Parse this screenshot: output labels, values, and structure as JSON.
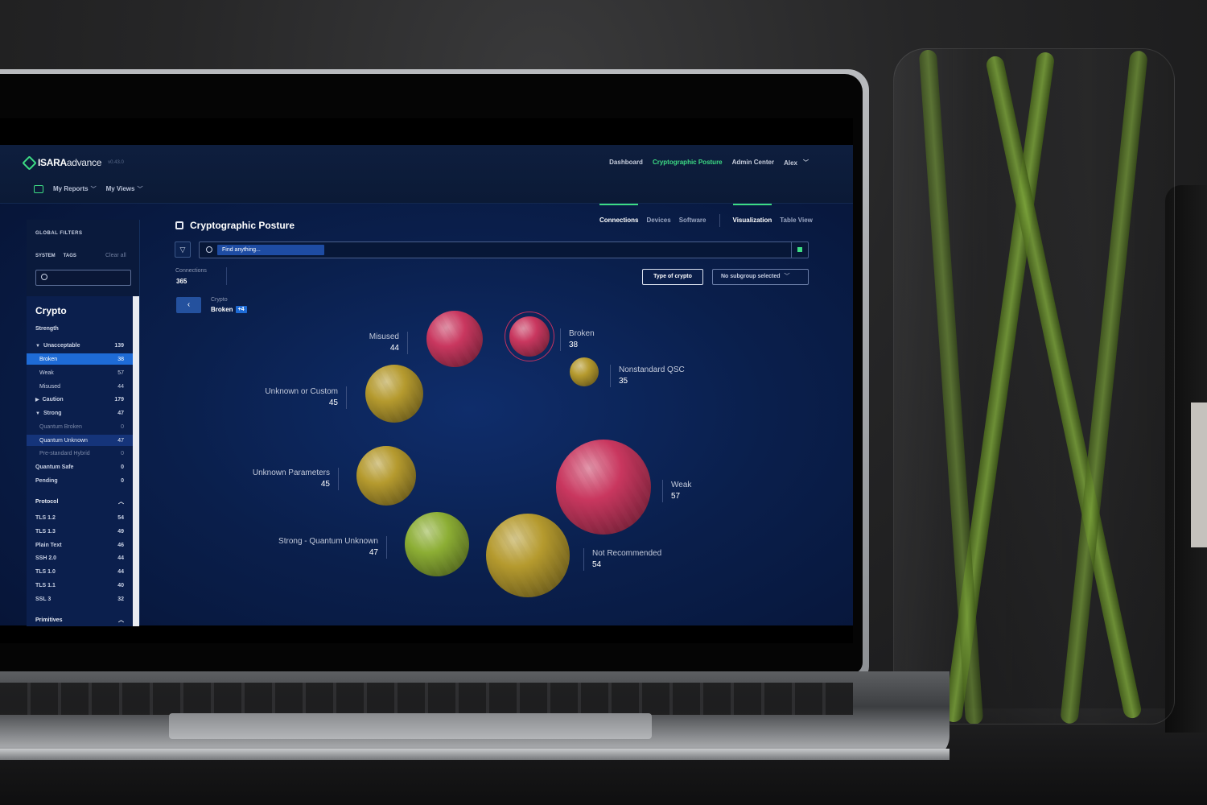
{
  "brand": {
    "name_bold": "ISARA",
    "name_light": "advance",
    "version": "v0.43.0"
  },
  "topnav": {
    "dashboard": "Dashboard",
    "crypto_posture": "Cryptographic Posture",
    "admin": "Admin Center",
    "user": "Alex"
  },
  "subnav": {
    "reports": "My Reports",
    "views": "My Views"
  },
  "sidebar": {
    "heading": "GLOBAL FILTERS",
    "tab_system": "SYSTEM",
    "tab_tags": "TAGS",
    "clear": "Clear all",
    "section_title": "Crypto",
    "strength_label": "Strength",
    "rows": [
      {
        "label": "Unacceptable",
        "count": "139"
      },
      {
        "label": "Broken",
        "count": "38"
      },
      {
        "label": "Weak",
        "count": "57"
      },
      {
        "label": "Misused",
        "count": "44"
      },
      {
        "label": "Caution",
        "count": "179"
      },
      {
        "label": "Strong",
        "count": "47"
      },
      {
        "label": "Quantum Broken",
        "count": "0"
      },
      {
        "label": "Quantum Unknown",
        "count": "47"
      },
      {
        "label": "Pre-standard Hybrid",
        "count": "0"
      },
      {
        "label": "Quantum Safe",
        "count": "0"
      },
      {
        "label": "Pending",
        "count": "0"
      }
    ],
    "protocol_label": "Protocol",
    "protocols": [
      {
        "label": "TLS 1.2",
        "count": "54"
      },
      {
        "label": "TLS 1.3",
        "count": "49"
      },
      {
        "label": "Plain Text",
        "count": "46"
      },
      {
        "label": "SSH 2.0",
        "count": "44"
      },
      {
        "label": "TLS 1.0",
        "count": "44"
      },
      {
        "label": "TLS 1.1",
        "count": "40"
      },
      {
        "label": "SSL 3",
        "count": "32"
      }
    ],
    "primitives_label": "Primitives"
  },
  "main": {
    "title": "Cryptographic Posture",
    "tabs": {
      "connections": "Connections",
      "devices": "Devices",
      "software": "Software",
      "visualization": "Visualization",
      "table": "Table View"
    },
    "search_placeholder": "Find anything...",
    "connections_label": "Connections",
    "connections_value": "365",
    "type_button": "Type of crypto",
    "subgroup": "No subgroup selected",
    "crumb_label": "Crypto",
    "crumb_value": "Broken",
    "crumb_badge": "+4"
  },
  "bubbles": [
    {
      "label": "Misused",
      "value": "44",
      "color": "#c9375f"
    },
    {
      "label": "Broken",
      "value": "38",
      "color": "#c9375f"
    },
    {
      "label": "Nonstandard QSC",
      "value": "35",
      "color": "#b59a2e"
    },
    {
      "label": "Unknown or Custom",
      "value": "45",
      "color": "#b59a2e"
    },
    {
      "label": "Unknown Parameters",
      "value": "45",
      "color": "#b59a2e"
    },
    {
      "label": "Weak",
      "value": "57",
      "color": "#c9375f"
    },
    {
      "label": "Strong - Quantum Unknown",
      "value": "47",
      "color": "#8cae34"
    },
    {
      "label": "Not Recommended",
      "value": "54",
      "color": "#b59a2e"
    }
  ]
}
